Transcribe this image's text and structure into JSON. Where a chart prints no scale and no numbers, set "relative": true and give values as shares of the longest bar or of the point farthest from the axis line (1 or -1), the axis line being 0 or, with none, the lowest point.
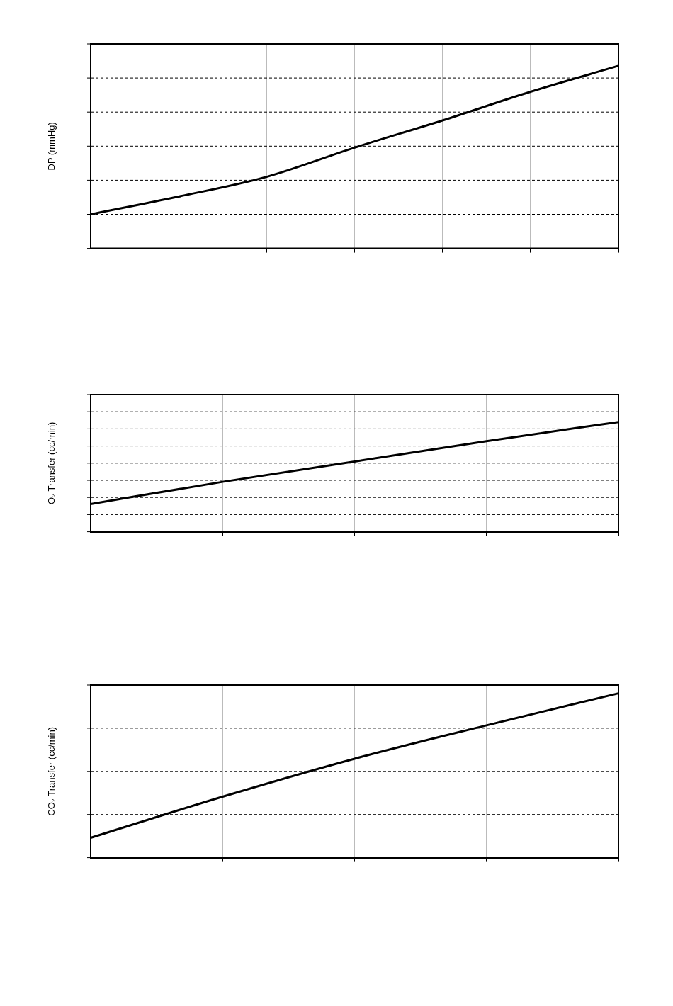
{
  "chart_data": [
    {
      "type": "line",
      "ylabel": "DP (mmHg)",
      "relative": true,
      "grid": true,
      "line_style": "solid",
      "marker": "none",
      "legend": false,
      "categories": [
        null,
        null,
        null,
        null,
        null,
        null,
        null
      ],
      "series": [
        {
          "color": "#000000",
          "values": [
            0.187,
            0.284,
            0.392,
            0.552,
            0.701,
            0.858,
            1
          ]
        }
      ]
    },
    {
      "type": "line",
      "ylabel": "O₂ Transfer (cc/min)",
      "relative": true,
      "grid": true,
      "line_style": "solid",
      "marker": "none",
      "legend": false,
      "categories": [
        null,
        null,
        null,
        null,
        null
      ],
      "series": [
        {
          "color": "#000000",
          "values": [
            0.253,
            0.455,
            0.64,
            0.826,
            1
          ]
        }
      ]
    },
    {
      "type": "line",
      "ylabel": "CO₂ Transfer (cc/min)",
      "relative": true,
      "grid": true,
      "line_style": "solid",
      "marker": "none",
      "legend": false,
      "categories": [
        null,
        null,
        null,
        null,
        null
      ],
      "series": [
        {
          "color": "#000000",
          "values": [
            0.121,
            0.371,
            0.602,
            0.805,
            1
          ]
        }
      ]
    }
  ]
}
